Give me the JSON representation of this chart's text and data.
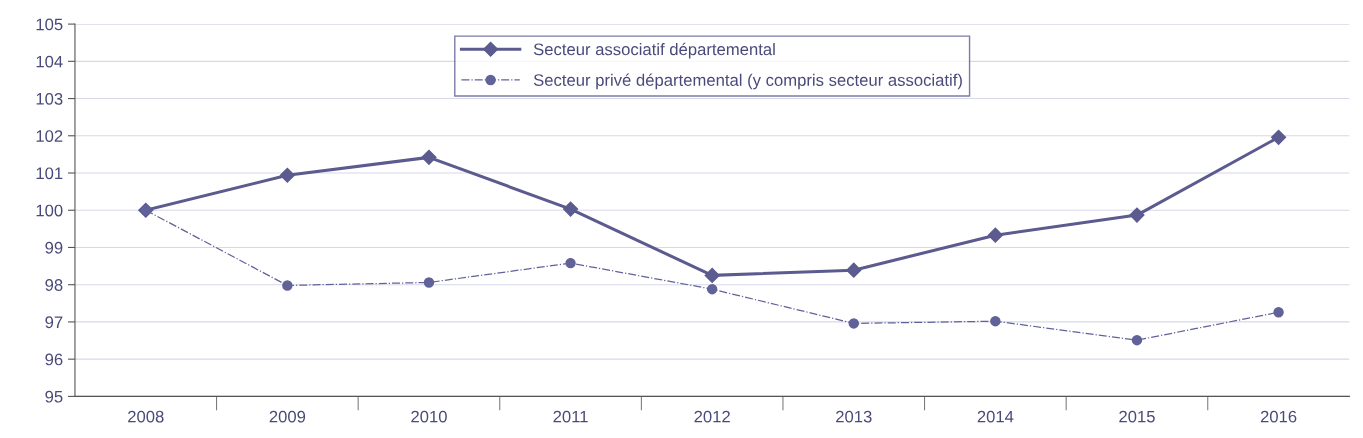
{
  "chart_data": {
    "type": "line",
    "categories": [
      "2008",
      "2009",
      "2010",
      "2011",
      "2012",
      "2013",
      "2014",
      "2015",
      "2016"
    ],
    "series": [
      {
        "name": "Secteur associatif départemental",
        "color": "#5b5b8f",
        "marker": "diamond",
        "line_style": "solid",
        "values": [
          100,
          100.94,
          101.42,
          100.03,
          98.25,
          98.39,
          99.33,
          99.87,
          101.96
        ]
      },
      {
        "name": "Secteur privé départemental (y compris secteur associatif)",
        "color": "#62629a",
        "marker": "circle",
        "line_style": "dashed",
        "values": [
          100,
          97.98,
          98.06,
          98.58,
          97.88,
          96.96,
          97.02,
          96.51,
          97.26
        ]
      }
    ],
    "ylim": [
      95,
      105
    ],
    "yticks": [
      95,
      96,
      97,
      98,
      99,
      100,
      101,
      102,
      103,
      104,
      105
    ],
    "grid": "y",
    "legend": "top"
  }
}
